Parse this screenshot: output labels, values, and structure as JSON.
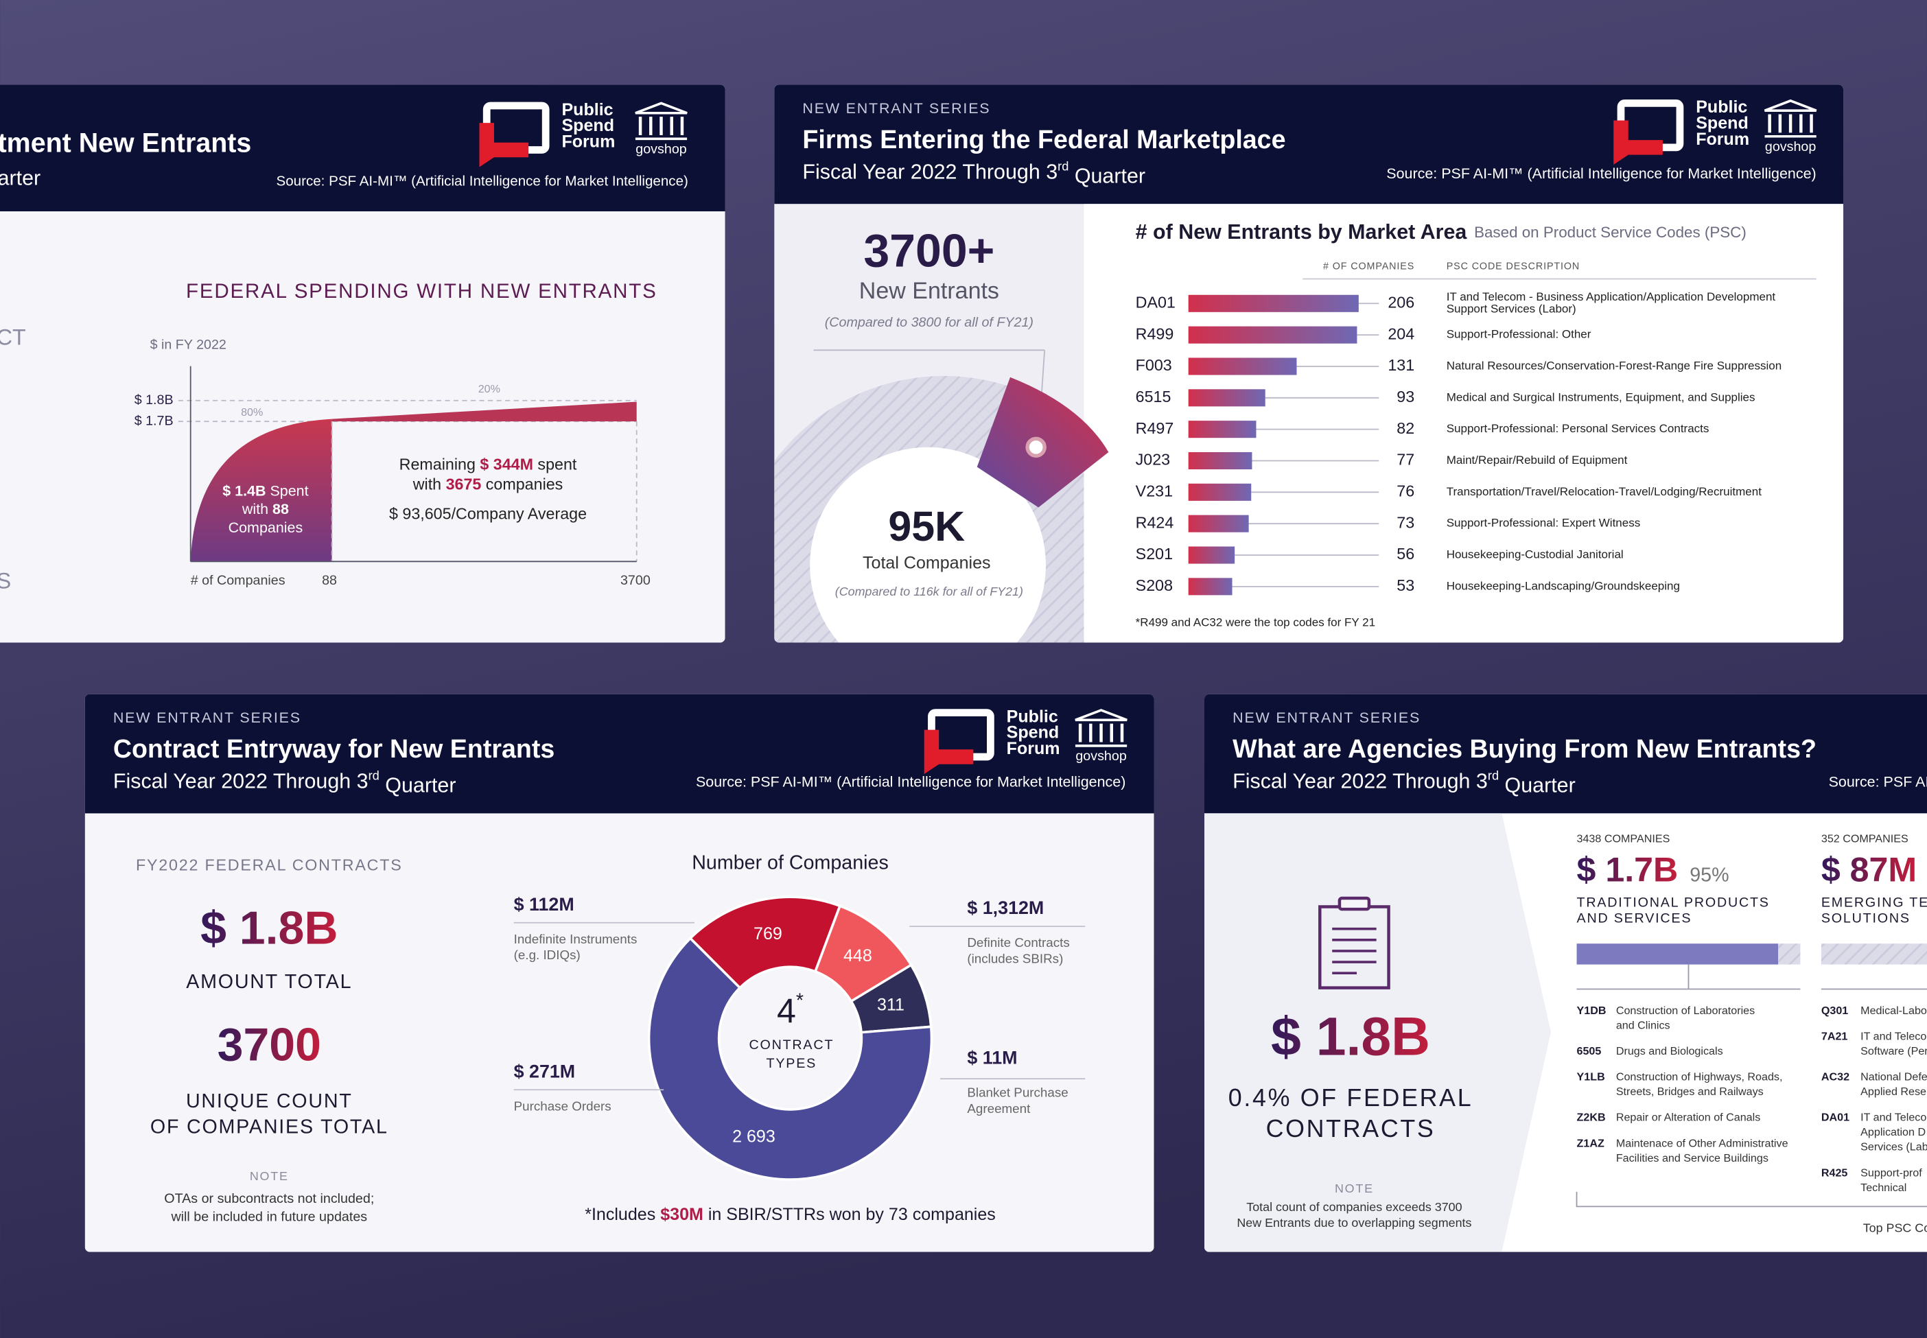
{
  "spending_card": {
    "title": "tment New Entrants",
    "subtitle": "arter",
    "logo": [
      "Public",
      "Spend",
      "Forum"
    ],
    "govshop": "govshop",
    "source": "Source: PSF AI-MI™ (Artificial Intelligence for Market Intelligence)",
    "side_labels": [
      "CT",
      "S"
    ],
    "chart_title": "FEDERAL SPENDING WITH NEW ENTRANTS",
    "unit": "$ in FY 2022",
    "y_labels": [
      "$ 1.8B",
      "$ 1.7B"
    ],
    "share_labels": [
      "80%",
      "20%"
    ],
    "top_note": [
      [
        {
          "em": "$ 1.4B"
        },
        " Spent"
      ],
      [
        "with ",
        {
          "em": "88"
        }
      ],
      [
        "Companies"
      ]
    ],
    "remaining_note": [
      [
        "Remaining ",
        {
          "em": "$ 344M"
        },
        " spent"
      ],
      [
        "with ",
        {
          "em": "3675"
        },
        " companies"
      ]
    ],
    "average": "$ 93,605/Company Average",
    "x_label": "# of Companies",
    "x_labels": [
      "88",
      "3700"
    ]
  },
  "marketplace_card": {
    "series": "NEW ENTRANT SERIES",
    "title": "Firms Entering the Federal Marketplace",
    "subtitle": {
      "text": "Fiscal Year 2022 Through 3",
      "sup": "rd",
      "rest": " Quarter"
    },
    "logo": [
      "Public",
      "Spend",
      "Forum"
    ],
    "govshop": "govshop",
    "source": "Source: PSF AI-MI™ (Artificial Intelligence for Market Intelligence)",
    "headline": "3700+",
    "headline_label": "New Entrants",
    "headline_note": "(Compared to 3800 for all of FY21)",
    "total": "95K",
    "total_label": "Total Companies",
    "total_note": "(Compared to 116k for all of FY21)",
    "chart_title": "# of New Entrants by Market Area",
    "chart_subtitle": "Based on Product Service Codes (PSC)",
    "headers": [
      "# OF COMPANIES",
      "PSC CODE DESCRIPTION"
    ],
    "xlim": [
      0,
      220
    ],
    "bar_colors": [
      "#d2304c",
      "#6f68b4"
    ],
    "rows": [
      {
        "code": "DA01",
        "value": 206,
        "desc": [
          "IT and Telecom - Business Application/Application Development",
          "Support Services (Labor)"
        ]
      },
      {
        "code": "R499",
        "value": 204,
        "desc": [
          "Support-Professional: Other"
        ]
      },
      {
        "code": "F003",
        "value": 131,
        "desc": [
          "Natural Resources/Conservation-Forest-Range Fire Suppression"
        ]
      },
      {
        "code": "6515",
        "value": 93,
        "desc": [
          "Medical and Surgical Instruments, Equipment, and Supplies"
        ]
      },
      {
        "code": "R497",
        "value": 82,
        "desc": [
          "Support-Professional: Personal Services Contracts"
        ]
      },
      {
        "code": "J023",
        "value": 77,
        "desc": [
          "Maint/Repair/Rebuild of Equipment"
        ]
      },
      {
        "code": "V231",
        "value": 76,
        "desc": [
          "Transportation/Travel/Relocation-Travel/Lodging/Recruitment"
        ]
      },
      {
        "code": "R424",
        "value": 73,
        "desc": [
          "Support-Professional: Expert Witness"
        ]
      },
      {
        "code": "S201",
        "value": 56,
        "desc": [
          "Housekeeping-Custodial Janitorial"
        ]
      },
      {
        "code": "S208",
        "value": 53,
        "desc": [
          "Housekeeping-Landscaping/Groundskeeping"
        ]
      }
    ],
    "footnote": "*R499 and AC32 were the top codes for FY 21"
  },
  "entryway_card": {
    "series": "NEW ENTRANT SERIES",
    "title": "Contract Entryway for New Entrants",
    "subtitle": {
      "text": "Fiscal Year 2022 Through 3",
      "sup": "rd",
      "rest": " Quarter"
    },
    "logo": [
      "Public",
      "Spend",
      "Forum"
    ],
    "govshop": "govshop",
    "source": "Source: PSF AI-MI™ (Artificial Intelligence for Market Intelligence)",
    "kicker": "FY2022 FEDERAL CONTRACTS",
    "amount": "$ 1.8B",
    "amount_label": "AMOUNT TOTAL",
    "count": "3700",
    "count_label": [
      "UNIQUE COUNT",
      "OF COMPANIES TOTAL"
    ],
    "note_title": "NOTE",
    "note": [
      "OTAs or subcontracts not included;",
      "will be included in future updates"
    ],
    "donut": {
      "title": "Number of Companies",
      "center": {
        "value": "4",
        "mark": "*",
        "lines": [
          "CONTRACT",
          "TYPES"
        ]
      },
      "values": [
        769,
        448,
        311,
        2693
      ],
      "value_labels": [
        "769",
        "448",
        "311",
        "2 693"
      ],
      "colors": [
        "#c4112f",
        "#f0575c",
        "#2f2e58",
        "#4b4a99"
      ],
      "callouts": [
        {
          "amount": "$ 112M",
          "desc": [
            "Indefinite Instruments",
            "(e.g. IDIQs)"
          ]
        },
        {
          "amount": "$ 1,312M",
          "desc": [
            "Definite Contracts",
            "(includes SBIRs)"
          ]
        },
        {
          "amount": "$ 11M",
          "desc": [
            "Blanket Purchase",
            "Agreement"
          ]
        },
        {
          "amount": "$ 271M",
          "desc": [
            "Purchase Orders"
          ]
        }
      ]
    },
    "footnote": [
      "*Includes ",
      {
        "em": "$30M"
      },
      " in SBIR/STTRs won by 73 companies"
    ]
  },
  "agencies_card": {
    "series": "NEW ENTRANT SERIES",
    "title": "What are Agencies Buying From New Entrants?",
    "subtitle": {
      "text": "Fiscal Year 2022 Through 3",
      "sup": "rd",
      "rest": " Quarter"
    },
    "source": "Source: PSF AI-",
    "amount": "$ 1.8B",
    "share": [
      "0.4% OF FEDERAL",
      "CONTRACTS"
    ],
    "note_title": "NOTE",
    "note": [
      "Total count of companies exceeds 3700",
      "New Entrants due to overlapping segments"
    ],
    "columns": [
      {
        "companies": "3438 COMPANIES",
        "amount": "$ 1.7B",
        "share": "95%",
        "label": [
          "TRADITIONAL PRODUCTS",
          "AND SERVICES"
        ],
        "codes": [
          {
            "code": "Y1DB",
            "desc": [
              "Construction of Laboratories",
              "and Clinics"
            ]
          },
          {
            "code": "6505",
            "desc": [
              "Drugs and Biologicals"
            ]
          },
          {
            "code": "Y1LB",
            "desc": [
              "Construction of Highways,  Roads,",
              "Streets, Bridges and Railways"
            ]
          },
          {
            "code": "Z2KB",
            "desc": [
              "Repair or Alteration of Canals"
            ]
          },
          {
            "code": "Z1AZ",
            "desc": [
              "Maintenace of Other Administrative",
              "Facilities and Service Buildings"
            ]
          }
        ]
      },
      {
        "companies": "352 COMPANIES",
        "amount": "$ 87M",
        "label": [
          "EMERGING TEC",
          "SOLUTIONS"
        ],
        "codes": [
          {
            "code": "Q301",
            "desc": [
              "Medical-Labo"
            ]
          },
          {
            "code": "7A21",
            "desc": [
              "IT and Teleco",
              "Software (Per"
            ]
          },
          {
            "code": "AC32",
            "desc": [
              "National Defe",
              "Applied Rese"
            ]
          },
          {
            "code": "DA01",
            "desc": [
              "IT and Teleco",
              "Application D",
              "Services (Lab"
            ]
          },
          {
            "code": "R425",
            "desc": [
              "Support-prof",
              "Technical"
            ]
          }
        ]
      }
    ],
    "footer": "Top PSC Co"
  }
}
